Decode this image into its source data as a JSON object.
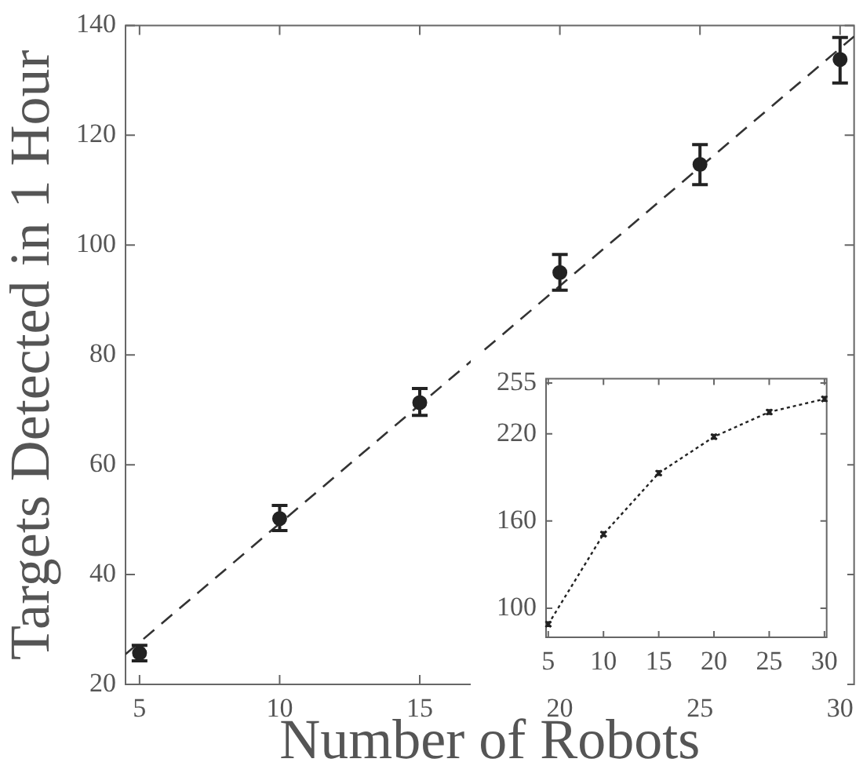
{
  "chart_data": [
    {
      "type": "scatter",
      "xlabel": "Number of Robots",
      "ylabel": "Targets Detected in 1 Hour",
      "xlim": [
        4.5,
        30.5
      ],
      "xticks": [
        5,
        10,
        15,
        20,
        25,
        30
      ],
      "ylim": [
        20,
        140
      ],
      "yticks": [
        20,
        40,
        60,
        80,
        100,
        120,
        140
      ],
      "legend": false,
      "grid": false,
      "series": [
        {
          "type": "scatter",
          "color": "#222222",
          "marker": "circle",
          "x": [
            5,
            10,
            15,
            20,
            25,
            30
          ],
          "values": [
            25.7,
            50.2,
            71.3,
            95.0,
            114.7,
            133.8
          ],
          "errors": [
            [
              24.3,
              27.1
            ],
            [
              48.0,
              52.6
            ],
            [
              69.0,
              73.9
            ],
            [
              91.8,
              98.3
            ],
            [
              111.0,
              118.3
            ],
            [
              129.5,
              137.8
            ]
          ]
        },
        {
          "type": "line",
          "color": "#333333",
          "marker": "none",
          "line_style": "dashed",
          "x": [
            4.5,
            30.5
          ],
          "values": [
            25.5,
            138
          ]
        }
      ]
    },
    {
      "type": "line",
      "color": "#222222",
      "marker": "cross",
      "line_style": "dotted",
      "legend": false,
      "grid": false,
      "x": [
        5,
        10,
        15,
        20,
        25,
        30
      ],
      "values": [
        89,
        151,
        193,
        218,
        235,
        244
      ],
      "errors": [
        1.5,
        1.5,
        1.5,
        1.5,
        1.5,
        1.5
      ],
      "xlim": [
        4.8,
        30.2
      ],
      "xticks": [
        5,
        10,
        15,
        20,
        25,
        30
      ],
      "ylim": [
        80,
        258
      ],
      "yticks": [
        100,
        160,
        220,
        255
      ]
    }
  ]
}
